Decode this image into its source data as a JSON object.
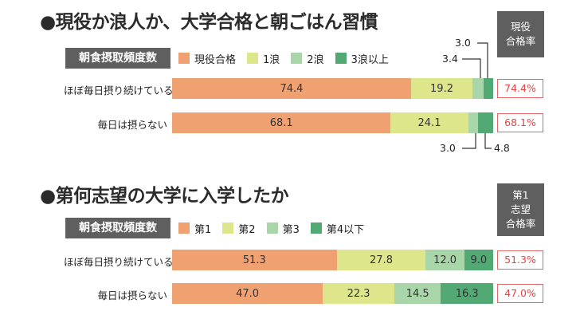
{
  "section1": {
    "title": "●現役か浪人か、大学合格と朝ごはん習慣",
    "row_header": "朝食摂取頻度数",
    "rate_header": [
      "現役",
      "合格率"
    ],
    "notes": [
      "3.0",
      "3.4",
      "3.0",
      "4.8"
    ]
  },
  "section2": {
    "title": "●第何志望の大学に入学したか",
    "row_header": "朝食摂取頻度数",
    "rate_header": [
      "第1",
      "志望",
      "合格率"
    ]
  },
  "colors": {
    "orange": "#f0a172",
    "yellowgreen": "#dde68a",
    "lightgreen": "#a8d6a8",
    "green": "#53a974",
    "header_bg": "#5f5f5f",
    "rate_border": "#e0686a",
    "rate_text": "#e04646"
  },
  "chart_data": [
    {
      "type": "bar",
      "stacked": true,
      "orientation": "horizontal",
      "title": "●現役か浪人か、大学合格と朝ごはん習慣",
      "categories": [
        "ほぼ毎日摂り続けている",
        "毎日は摂らない"
      ],
      "series": [
        {
          "name": "現役合格",
          "color": "#f0a172",
          "values": [
            74.4,
            68.1
          ],
          "labels": [
            "74.4",
            "68.1"
          ]
        },
        {
          "name": "1浪",
          "color": "#dde68a",
          "values": [
            19.2,
            24.1
          ],
          "labels": [
            "19.2",
            "24.1"
          ]
        },
        {
          "name": "2浪",
          "color": "#a8d6a8",
          "values": [
            3.4,
            3.0
          ],
          "labels": [
            "",
            ""
          ]
        },
        {
          "name": "3浪以上",
          "color": "#53a974",
          "values": [
            3.0,
            4.8
          ],
          "labels": [
            "",
            ""
          ]
        }
      ],
      "rates": [
        "74.4%",
        "68.1%"
      ],
      "xlim": [
        0,
        100
      ],
      "legend": "top"
    },
    {
      "type": "bar",
      "stacked": true,
      "orientation": "horizontal",
      "title": "●第何志望の大学に入学したか",
      "categories": [
        "ほぼ毎日摂り続けている",
        "毎日は摂らない"
      ],
      "series": [
        {
          "name": "第1",
          "color": "#f0a172",
          "values": [
            51.3,
            47.0
          ],
          "labels": [
            "51.3",
            "47.0"
          ]
        },
        {
          "name": "第2",
          "color": "#dde68a",
          "values": [
            27.8,
            22.3
          ],
          "labels": [
            "27.8",
            "22.3"
          ]
        },
        {
          "name": "第3",
          "color": "#a8d6a8",
          "values": [
            12.0,
            14.5
          ],
          "labels": [
            "12.0",
            "14.5"
          ]
        },
        {
          "name": "第4以下",
          "color": "#53a974",
          "values": [
            9.0,
            16.3
          ],
          "labels": [
            "9.0",
            "16.3"
          ]
        }
      ],
      "rates": [
        "51.3%",
        "47.0%"
      ],
      "xlim": [
        0,
        100
      ],
      "legend": "top"
    }
  ]
}
